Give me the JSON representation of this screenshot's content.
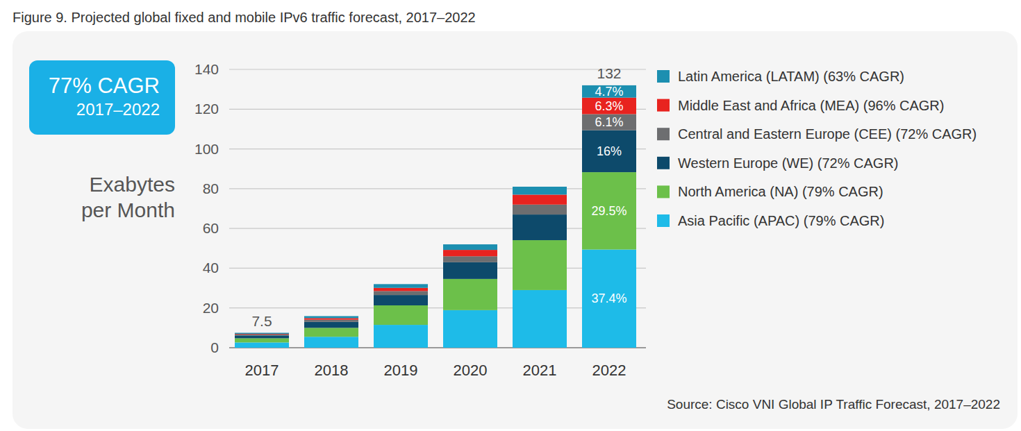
{
  "chart_data": {
    "type": "bar",
    "title": "Figure 9. Projected global fixed and mobile IPv6 traffic forecast, 2017–2022",
    "ylabel": "Exabytes per Month",
    "source": "Source: Cisco VNI Global IP Traffic Forecast, 2017–2022",
    "annotation": {
      "text": "77% CAGR",
      "subtext": "2017–2022"
    },
    "stacked": true,
    "grid": true,
    "legend": "right",
    "categories": [
      "2017",
      "2018",
      "2019",
      "2020",
      "2021",
      "2022"
    ],
    "ylim": [
      0,
      140
    ],
    "yticks": [
      0,
      20,
      40,
      60,
      80,
      100,
      120,
      140
    ],
    "totals": [
      7.5,
      null,
      null,
      null,
      null,
      132
    ],
    "series": [
      {
        "name": "Asia Pacific (APAC) (79% CAGR)",
        "color": "#1ebbe8",
        "values": [
          2.65,
          5.5,
          11.5,
          18.9,
          29.0,
          49.4
        ],
        "share_labels": [
          null,
          null,
          null,
          null,
          null,
          "37.4%"
        ]
      },
      {
        "name": "North America (NA) (79% CAGR)",
        "color": "#6cc04a",
        "values": [
          2.1,
          4.5,
          9.8,
          15.7,
          25.1,
          38.9
        ],
        "share_labels": [
          null,
          null,
          null,
          null,
          null,
          "29.5%"
        ]
      },
      {
        "name": "Western Europe (WE) (72% CAGR)",
        "color": "#0d4a6b",
        "values": [
          1.4,
          3.0,
          5.2,
          8.4,
          12.9,
          21.1
        ],
        "share_labels": [
          null,
          null,
          null,
          null,
          null,
          "16%"
        ]
      },
      {
        "name": "Central and Eastern Europe (CEE) (72% CAGR)",
        "color": "#6d6e70",
        "values": [
          0.5,
          1.1,
          2.0,
          3.0,
          5.0,
          8.1
        ],
        "share_labels": [
          null,
          null,
          null,
          null,
          null,
          "6.1%"
        ]
      },
      {
        "name": "Middle East and Africa (MEA) (96% CAGR)",
        "color": "#e8231f",
        "values": [
          0.3,
          0.8,
          1.6,
          3.2,
          5.0,
          8.3
        ],
        "share_labels": [
          null,
          null,
          null,
          null,
          null,
          "6.3%"
        ]
      },
      {
        "name": "Latin America (LATAM) (63% CAGR)",
        "color": "#1c8fb0",
        "values": [
          0.55,
          1.0,
          1.9,
          2.8,
          4.0,
          6.2
        ],
        "share_labels": [
          null,
          null,
          null,
          null,
          null,
          "4.7%"
        ]
      }
    ]
  }
}
